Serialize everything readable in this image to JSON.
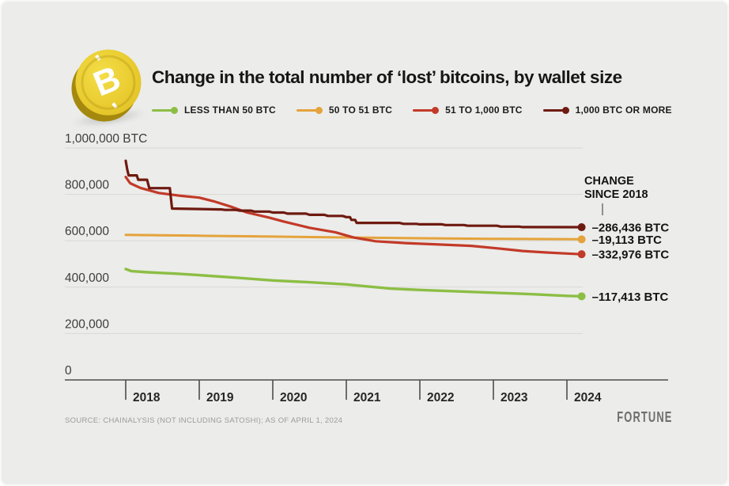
{
  "title": "Change in the total number of ‘lost’ bitcoins, by wallet size",
  "coin": {
    "symbol": "B"
  },
  "annotation": {
    "header_line1": "CHANGE",
    "header_line2": "SINCE 2018"
  },
  "source": "SOURCE: CHAINALYSIS (NOT INCLUDING SATOSHI); AS OF APRIL 1, 2024",
  "brand": "FORTUNE",
  "colors": {
    "background": "#ECECEA",
    "grid": "#D7D7D4",
    "axis": "#4D4D4D",
    "text": "#161616"
  },
  "chart_data": {
    "type": "line",
    "title": "Change in the total number of ‘lost’ bitcoins, by wallet size",
    "xlabel": "",
    "ylabel": "BTC",
    "grid": "horizontal",
    "legend_position": "top",
    "ylim": [
      0,
      1000000
    ],
    "xlim": [
      2018,
      2024.25
    ],
    "y_axis": {
      "ticks": [
        {
          "value": 1000000,
          "label": "1,000,000 BTC"
        },
        {
          "value": 800000,
          "label": "800,000"
        },
        {
          "value": 600000,
          "label": "600,000"
        },
        {
          "value": 400000,
          "label": "400,000"
        },
        {
          "value": 200000,
          "label": "200,000"
        },
        {
          "value": 0,
          "label": "0"
        }
      ]
    },
    "x_axis": {
      "ticks": [
        {
          "value": 2018,
          "label": "2018"
        },
        {
          "value": 2019,
          "label": "2019"
        },
        {
          "value": 2020,
          "label": "2020"
        },
        {
          "value": 2021,
          "label": "2021"
        },
        {
          "value": 2022,
          "label": "2022"
        },
        {
          "value": 2023,
          "label": "2023"
        },
        {
          "value": 2024,
          "label": "2024"
        }
      ]
    },
    "series": [
      {
        "name": "LESS THAN 50 BTC",
        "color": "#8CBE44",
        "width": 3.4,
        "change_since_2018": -117413,
        "change_label": "–117,413 BTC",
        "points": [
          [
            2018.0,
            478000
          ],
          [
            2018.08,
            469000
          ],
          [
            2018.3,
            464000
          ],
          [
            2018.7,
            458000
          ],
          [
            2019.0,
            452000
          ],
          [
            2019.5,
            441000
          ],
          [
            2020.0,
            429000
          ],
          [
            2020.5,
            421000
          ],
          [
            2021.0,
            412000
          ],
          [
            2021.25,
            404000
          ],
          [
            2021.6,
            394000
          ],
          [
            2022.0,
            388000
          ],
          [
            2022.5,
            382000
          ],
          [
            2023.0,
            376000
          ],
          [
            2023.5,
            370000
          ],
          [
            2024.0,
            362500
          ],
          [
            2024.2,
            360587
          ]
        ]
      },
      {
        "name": "50 TO 51 BTC",
        "color": "#E4A33B",
        "width": 3,
        "change_since_2018": -19113,
        "change_label": "–19,113 BTC",
        "points": [
          [
            2018.0,
            625500
          ],
          [
            2019.0,
            621800
          ],
          [
            2020.0,
            618000
          ],
          [
            2021.0,
            614200
          ],
          [
            2022.0,
            611000
          ],
          [
            2023.0,
            608400
          ],
          [
            2024.2,
            606387
          ]
        ]
      },
      {
        "name": "51 TO 1,000 BTC",
        "color": "#C23A28",
        "width": 3.2,
        "change_since_2018": -332976,
        "change_label": "–332,976 BTC",
        "points": [
          [
            2018.0,
            875000
          ],
          [
            2018.06,
            848000
          ],
          [
            2018.2,
            828000
          ],
          [
            2018.45,
            806000
          ],
          [
            2018.75,
            794000
          ],
          [
            2019.0,
            786000
          ],
          [
            2019.2,
            770000
          ],
          [
            2019.45,
            745000
          ],
          [
            2019.65,
            722000
          ],
          [
            2019.95,
            700000
          ],
          [
            2020.15,
            683000
          ],
          [
            2020.5,
            656000
          ],
          [
            2020.85,
            637000
          ],
          [
            2021.1,
            614000
          ],
          [
            2021.4,
            598000
          ],
          [
            2021.8,
            590000
          ],
          [
            2022.2,
            585000
          ],
          [
            2022.7,
            578000
          ],
          [
            2023.1,
            566000
          ],
          [
            2023.4,
            556000
          ],
          [
            2023.7,
            550000
          ],
          [
            2024.0,
            545000
          ],
          [
            2024.2,
            542024
          ]
        ]
      },
      {
        "name": "1,000 BTC OR MORE",
        "color": "#6E1A10",
        "width": 3.2,
        "change_since_2018": -286436,
        "change_label": "–286,436 BTC",
        "points": [
          [
            2018.0,
            945000
          ],
          [
            2018.02,
            908000
          ],
          [
            2018.04,
            882000
          ],
          [
            2018.15,
            882000
          ],
          [
            2018.17,
            863000
          ],
          [
            2018.29,
            863000
          ],
          [
            2018.32,
            827000
          ],
          [
            2018.6,
            827000
          ],
          [
            2018.63,
            739000
          ],
          [
            2019.3,
            735000
          ],
          [
            2019.35,
            733000
          ],
          [
            2019.5,
            733000
          ],
          [
            2019.55,
            730000
          ],
          [
            2019.7,
            730000
          ],
          [
            2019.75,
            726000
          ],
          [
            2019.95,
            726000
          ],
          [
            2020.0,
            722000
          ],
          [
            2020.15,
            722000
          ],
          [
            2020.2,
            717000
          ],
          [
            2020.45,
            717000
          ],
          [
            2020.5,
            712000
          ],
          [
            2020.7,
            712000
          ],
          [
            2020.75,
            707000
          ],
          [
            2020.95,
            707000
          ],
          [
            2021.0,
            702000
          ],
          [
            2021.05,
            702000
          ],
          [
            2021.07,
            690000
          ],
          [
            2021.12,
            690000
          ],
          [
            2021.14,
            677000
          ],
          [
            2021.72,
            677000
          ],
          [
            2021.78,
            673000
          ],
          [
            2021.95,
            673000
          ],
          [
            2022.0,
            671000
          ],
          [
            2022.3,
            671000
          ],
          [
            2022.35,
            668000
          ],
          [
            2022.6,
            668000
          ],
          [
            2022.65,
            665000
          ],
          [
            2023.05,
            665000
          ],
          [
            2023.1,
            661000
          ],
          [
            2023.35,
            661000
          ],
          [
            2023.4,
            659000
          ],
          [
            2024.2,
            658564
          ]
        ]
      }
    ],
    "legend_order": [
      "LESS THAN 50 BTC",
      "50 TO 51 BTC",
      "51 TO 1,000 BTC",
      "1,000 BTC OR MORE"
    ]
  }
}
